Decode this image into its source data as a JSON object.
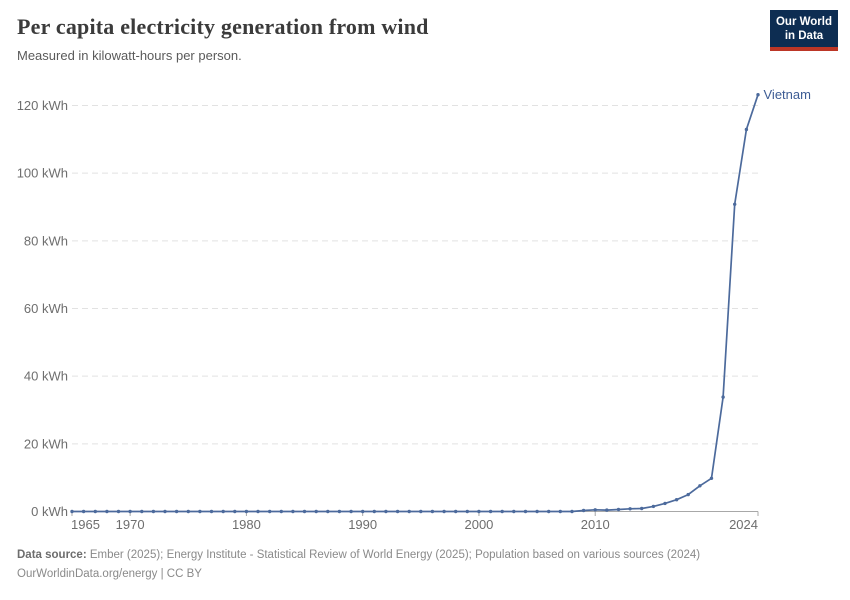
{
  "header": {
    "title": "Per capita electricity generation from wind",
    "subtitle": "Measured in kilowatt-hours per person.",
    "logo": {
      "line1": "Our World",
      "line2": "in Data"
    }
  },
  "chart_data": {
    "type": "line",
    "title": "Per capita electricity generation from wind",
    "subtitle": "Measured in kilowatt-hours per person.",
    "unit": "kWh",
    "grid": "horizontal-dashed",
    "legend_position": "end-of-line-label",
    "xlim": [
      1965,
      2024
    ],
    "ylim": [
      0,
      120
    ],
    "x_ticks": [
      1965,
      1970,
      1980,
      1990,
      2000,
      2010,
      2024
    ],
    "y_ticks": [
      0,
      20,
      40,
      60,
      80,
      100,
      120
    ],
    "y_tick_suffix": " kWh",
    "x": [
      1965,
      1966,
      1967,
      1968,
      1969,
      1970,
      1971,
      1972,
      1973,
      1974,
      1975,
      1976,
      1977,
      1978,
      1979,
      1980,
      1981,
      1982,
      1983,
      1984,
      1985,
      1986,
      1987,
      1988,
      1989,
      1990,
      1991,
      1992,
      1993,
      1994,
      1995,
      1996,
      1997,
      1998,
      1999,
      2000,
      2001,
      2002,
      2003,
      2004,
      2005,
      2006,
      2007,
      2008,
      2009,
      2010,
      2011,
      2012,
      2013,
      2014,
      2015,
      2016,
      2017,
      2018,
      2019,
      2020,
      2021,
      2022,
      2023,
      2024
    ],
    "series": [
      {
        "name": "Vietnam",
        "line_color": "#4c6a9c",
        "label_color": "#3d5c94",
        "values": [
          0,
          0,
          0,
          0,
          0,
          0,
          0,
          0,
          0,
          0,
          0,
          0,
          0,
          0,
          0,
          0,
          0,
          0,
          0,
          0,
          0,
          0,
          0,
          0,
          0,
          0,
          0,
          0,
          0,
          0,
          0,
          0,
          0,
          0,
          0,
          0,
          0,
          0,
          0,
          0,
          0,
          0,
          0,
          0,
          0.3,
          0.5,
          0.4,
          0.6,
          0.8,
          0.9,
          1.5,
          2.4,
          3.5,
          5,
          7.6,
          9.8,
          33.8,
          90.8,
          112.9,
          123.2
        ]
      }
    ]
  },
  "footer": {
    "sources_label": "Data source:",
    "sources_text": " Ember (2025); Energy Institute - Statistical Review of World Energy (2025); Population based on various sources (2024)",
    "license_text": "OurWorldinData.org/energy | CC BY"
  },
  "colors": {
    "grid": "#e2e2e2",
    "axis": "#a8a8a8",
    "tick_label": "#6e6e6e"
  }
}
